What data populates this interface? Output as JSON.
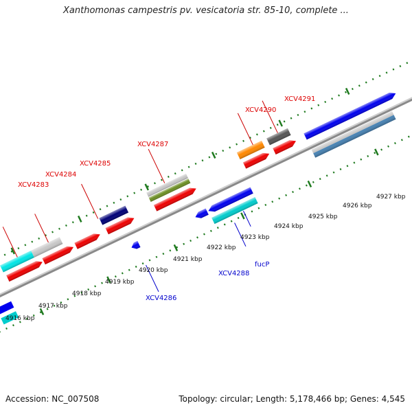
{
  "header": {
    "title": "Xanthomonas campestris pv. vesicatoria str. 85-10, complete ..."
  },
  "footer": {
    "accession": "Accession: NC_007508",
    "summary": "Topology: circular; Length: 5,178,466 bp; Genes: 4,545"
  },
  "colors": {
    "backbone": "#8a8a8a",
    "tick": "#1f7a1f",
    "plus_label": "#dd0000",
    "minus_label": "#0000cc"
  },
  "ruler": {
    "unit": "kbp",
    "ticks": [
      {
        "kbp": 4916,
        "label": "4916 kbp"
      },
      {
        "kbp": 4917,
        "label": "4917 kbp"
      },
      {
        "kbp": 4918,
        "label": "4918 kbp"
      },
      {
        "kbp": 4919,
        "label": "4919 kbp"
      },
      {
        "kbp": 4920,
        "label": "4920 kbp"
      },
      {
        "kbp": 4921,
        "label": "4921 kbp"
      },
      {
        "kbp": 4922,
        "label": "4922 kbp"
      },
      {
        "kbp": 4923,
        "label": "4923 kbp"
      },
      {
        "kbp": 4924,
        "label": "4924 kbp"
      },
      {
        "kbp": 4925,
        "label": "4925 kbp"
      },
      {
        "kbp": 4926,
        "label": "4926 kbp"
      },
      {
        "kbp": 4927,
        "label": "4927 kbp"
      }
    ]
  },
  "gene_labels": [
    {
      "name": "XCV4283",
      "strand": "+"
    },
    {
      "name": "XCV4284",
      "strand": "+"
    },
    {
      "name": "XCV4285",
      "strand": "+"
    },
    {
      "name": "XCV4287",
      "strand": "+"
    },
    {
      "name": "XCV4290",
      "strand": "+"
    },
    {
      "name": "XCV4291",
      "strand": "+"
    },
    {
      "name": "XCV4286",
      "strand": "-"
    },
    {
      "name": "XCV4288",
      "strand": "-"
    },
    {
      "name": "fucP",
      "strand": "-"
    }
  ]
}
